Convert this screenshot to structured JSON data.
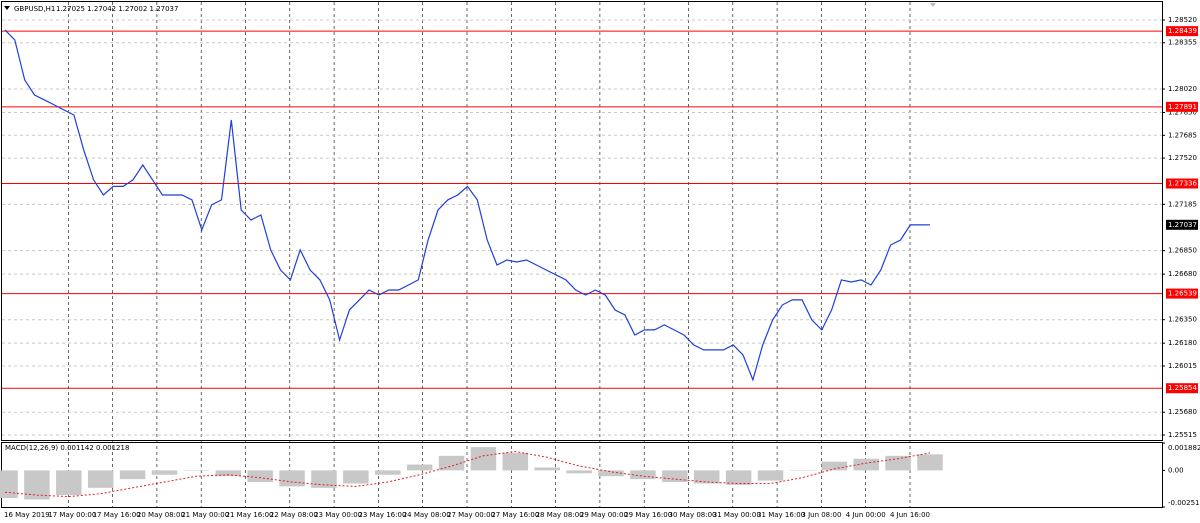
{
  "chart_data": {
    "type": "line",
    "title": "GBPUSD,H1",
    "quote": "1.27025 1.27042 1.27002 1.27037",
    "color": "#1f3fd8",
    "ylim": [
      1.25479,
      1.2865
    ],
    "yticks": [
      {
        "value": 1.2852,
        "label": "1.28520"
      },
      {
        "value": 1.28355,
        "label": "1.28355"
      },
      {
        "value": 1.2802,
        "label": "1.28020"
      },
      {
        "value": 1.2785,
        "label": "1.27850"
      },
      {
        "value": 1.27685,
        "label": "1.27685"
      },
      {
        "value": 1.2752,
        "label": "1.27520"
      },
      {
        "value": 1.27185,
        "label": "1.27185"
      },
      {
        "value": 1.2685,
        "label": "1.26850"
      },
      {
        "value": 1.2668,
        "label": "1.26680"
      },
      {
        "value": 1.2635,
        "label": "1.26350"
      },
      {
        "value": 1.2618,
        "label": "1.26180"
      },
      {
        "value": 1.26015,
        "label": "1.26015"
      },
      {
        "value": 1.2568,
        "label": "1.25680"
      },
      {
        "value": 1.25515,
        "label": "1.25515"
      }
    ],
    "levels": [
      {
        "value": 1.28439,
        "label": "1.28439"
      },
      {
        "value": 1.27891,
        "label": "1.27891"
      },
      {
        "value": 1.27336,
        "label": "1.27336"
      },
      {
        "value": 1.26539,
        "label": "1.26539"
      },
      {
        "value": 1.25854,
        "label": "1.25854"
      }
    ],
    "level_color": "#ff0000",
    "current_price": {
      "value": 1.27037,
      "label": "1.27037"
    },
    "xtick_labels": [
      "16 May 2019",
      "17 May 00:00",
      "17 May 16:00",
      "20 May 08:00",
      "21 May 00:00",
      "21 May 16:00",
      "22 May 08:00",
      "23 May 00:00",
      "23 May 16:00",
      "24 May 08:00",
      "27 May 00:00",
      "27 May 16:00",
      "28 May 08:00",
      "29 May 00:00",
      "29 May 16:00",
      "30 May 08:00",
      "31 May 00:00",
      "31 May 16:00",
      "3 Jun 08:00",
      "4 Jun 00:00",
      "4 Jun 16:00"
    ],
    "grid": true,
    "values": [
      1.28448,
      1.28375,
      1.28086,
      1.27977,
      1.27941,
      1.27905,
      1.27868,
      1.27832,
      1.27579,
      1.27362,
      1.27253,
      1.27315,
      1.27315,
      1.27362,
      1.2747,
      1.27362,
      1.27253,
      1.27253,
      1.27253,
      1.27217,
      1.27,
      1.27181,
      1.27217,
      1.27796,
      1.27144,
      1.27072,
      1.27108,
      1.26855,
      1.2671,
      1.26638,
      1.26855,
      1.2671,
      1.26638,
      1.26493,
      1.26203,
      1.2642,
      1.26493,
      1.26565,
      1.26529,
      1.26565,
      1.26565,
      1.26601,
      1.26638,
      1.26927,
      1.27144,
      1.27217,
      1.27253,
      1.27315,
      1.27217,
      1.26927,
      1.26746,
      1.26782,
      1.26768,
      1.26782,
      1.26746,
      1.2671,
      1.26674,
      1.26638,
      1.26565,
      1.26529,
      1.26565,
      1.26529,
      1.2642,
      1.26384,
      1.26239,
      1.26276,
      1.26276,
      1.26312,
      1.26276,
      1.26239,
      1.26167,
      1.26131,
      1.26131,
      1.26131,
      1.26167,
      1.26095,
      1.25914,
      1.26167,
      1.26348,
      1.26457,
      1.26493,
      1.26493,
      1.26348,
      1.26276,
      1.2642,
      1.26638,
      1.26623,
      1.26638,
      1.26601,
      1.2671,
      1.26891,
      1.26927,
      1.27036,
      1.27036,
      1.27037
    ],
    "macd": {
      "title": "MACD(12,26,9) 0.001142 0.001218",
      "ylim": [
        -0.002516,
        0.001882
      ],
      "yticks": [
        {
          "value": 0.001882,
          "label": "0.001882"
        },
        {
          "value": 0,
          "label": "0.00"
        },
        {
          "value": -0.002516,
          "label": "-0.002516"
        }
      ],
      "bar_color": "#c8c8c8",
      "signal_color": "#e02020",
      "values": [
        -0.0019,
        -0.002,
        -0.0017,
        -0.0012,
        -0.0006,
        -0.0003,
        0,
        -0.0004,
        -0.0008,
        -0.0011,
        -0.0012,
        -0.0009,
        -0.0003,
        0.0004,
        0.001,
        0.0016,
        0.0012,
        0.0002,
        -0.0002,
        -0.0004,
        -0.0006,
        -0.0008,
        -0.0009,
        -0.001,
        -0.0007,
        0,
        0.0006,
        0.0008,
        0.001,
        0.0011
      ],
      "signal": [
        -0.0015,
        -0.0017,
        -0.0018,
        -0.0016,
        -0.0012,
        -0.0008,
        -0.0004,
        -0.0003,
        -0.0005,
        -0.0008,
        -0.001,
        -0.0011,
        -0.0008,
        -0.0003,
        0.0003,
        0.001,
        0.0013,
        0.0009,
        0.0003,
        -0.0001,
        -0.0004,
        -0.0006,
        -0.0008,
        -0.0009,
        -0.0009,
        -0.0005,
        0.0001,
        0.0005,
        0.0008,
        0.0012
      ]
    }
  }
}
